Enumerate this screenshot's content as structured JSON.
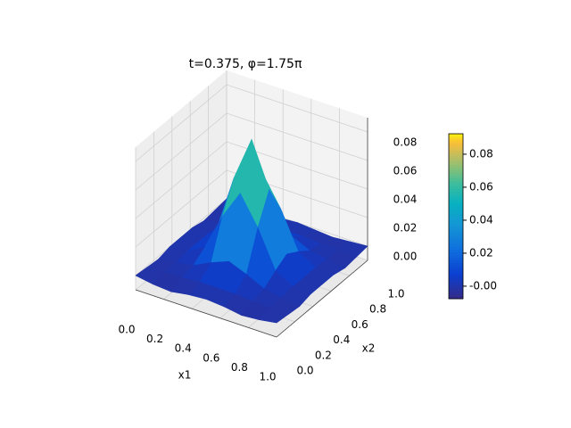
{
  "chart_data": {
    "type": "surface",
    "title": "t=0.375, φ=1.75π",
    "xlabel": "x1",
    "ylabel": "x2",
    "x": [
      0,
      0.125,
      0.25,
      0.375,
      0.5,
      0.625,
      0.75,
      0.875,
      1
    ],
    "y": [
      0,
      0.125,
      0.25,
      0.375,
      0.5,
      0.625,
      0.75,
      0.875,
      1
    ],
    "z": [
      [
        0,
        -0.002,
        -0.003,
        -0.001,
        0,
        -0.001,
        -0.003,
        -0.002,
        0
      ],
      [
        -0.001,
        0,
        0,
        0.001,
        0.001,
        0.001,
        0,
        0,
        -0.001
      ],
      [
        -0.002,
        0,
        0.002,
        0.008,
        0.013,
        0.008,
        0.002,
        0,
        -0.002
      ],
      [
        0,
        0.001,
        0.008,
        0.034,
        0.054,
        0.034,
        0.008,
        0.001,
        0
      ],
      [
        0,
        0.001,
        0.013,
        0.054,
        0.085,
        0.054,
        0.013,
        0.001,
        0
      ],
      [
        0,
        0.001,
        0.008,
        0.034,
        0.054,
        0.034,
        0.008,
        0.001,
        0
      ],
      [
        -0.002,
        0,
        0.002,
        0.008,
        0.013,
        0.008,
        0.002,
        0,
        -0.002
      ],
      [
        -0.001,
        0,
        0,
        0.001,
        0.001,
        0.001,
        0,
        0,
        -0.001
      ],
      [
        0,
        -0.001,
        -0.002,
        -0.001,
        0,
        -0.001,
        -0.002,
        -0.001,
        0
      ]
    ],
    "xlim": [
      0,
      1
    ],
    "ylim": [
      0,
      1
    ],
    "zlim": [
      -0.01,
      0.09
    ],
    "xticks": [
      {
        "value": 0,
        "label": "0.0"
      },
      0.2,
      0.4,
      0.6,
      0.8,
      {
        "value": 1,
        "label": "1.0"
      }
    ],
    "yticks": [
      {
        "value": 0,
        "label": "0.0"
      },
      0.2,
      0.4,
      0.6,
      0.8,
      {
        "value": 1,
        "label": "1.0"
      }
    ],
    "zticks": [
      {
        "value": 0,
        "label": "0.00"
      },
      0.02,
      0.04,
      0.06,
      0.08
    ],
    "colormap": "parula",
    "colorbar": {
      "lim": [
        -0.0076,
        0.0924
      ],
      "ticks": [
        {
          "value": 0,
          "label": "-0.00"
        },
        0.02,
        0.04,
        0.06,
        0.08
      ]
    },
    "grid": true
  }
}
